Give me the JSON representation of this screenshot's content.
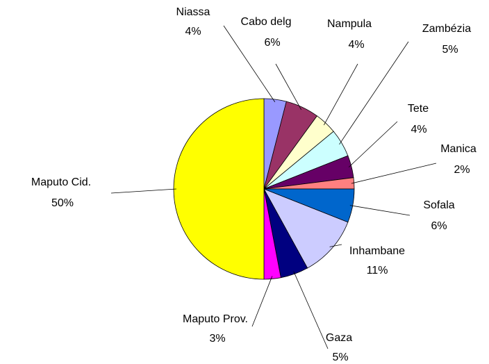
{
  "chart_data": {
    "type": "pie",
    "categories": [
      "Niassa",
      "Cabo delg",
      "Nampula",
      "Zambézia",
      "Tete",
      "Manica",
      "Sofala",
      "Inhambane",
      "Gaza",
      "Maputo Prov.",
      "Maputo Cid."
    ],
    "values": [
      4,
      6,
      4,
      5,
      4,
      2,
      6,
      11,
      5,
      3,
      50
    ],
    "value_labels": [
      "4%",
      "6%",
      "4%",
      "5%",
      "4%",
      "2%",
      "6%",
      "11%",
      "5%",
      "3%",
      "50%"
    ],
    "colors": [
      "#9999ff",
      "#993366",
      "#ffffcc",
      "#ccffff",
      "#660066",
      "#ff8080",
      "#0066cc",
      "#ccccff",
      "#000080",
      "#ff00ff",
      "#ffff00"
    ]
  }
}
